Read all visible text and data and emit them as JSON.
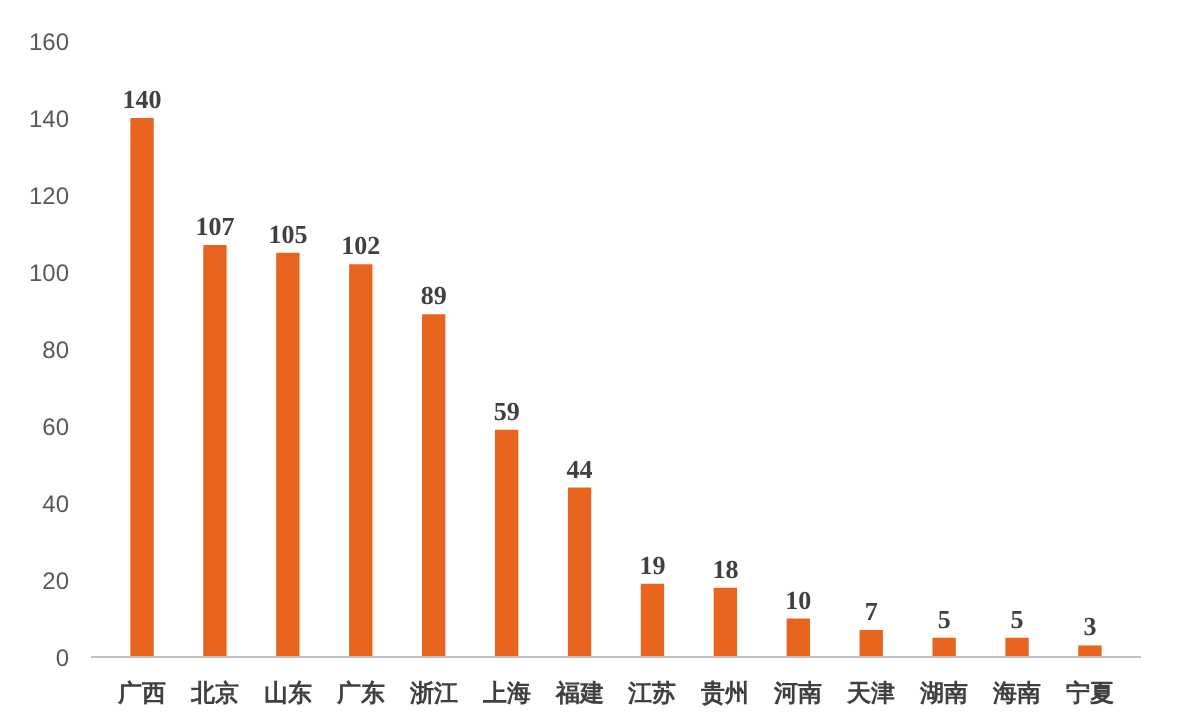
{
  "chart_data": {
    "type": "bar",
    "categories": [
      "广西",
      "北京",
      "山东",
      "广东",
      "浙江",
      "上海",
      "福建",
      "江苏",
      "贵州",
      "河南",
      "天津",
      "湖南",
      "海南",
      "宁夏"
    ],
    "values": [
      140,
      107,
      105,
      102,
      89,
      59,
      44,
      19,
      18,
      10,
      7,
      5,
      5,
      3
    ],
    "color": "#e8641e",
    "ylim": [
      0,
      160
    ],
    "yticks": [
      0,
      20,
      40,
      60,
      80,
      100,
      120,
      140,
      160
    ],
    "grid": false,
    "data_labels": true
  }
}
